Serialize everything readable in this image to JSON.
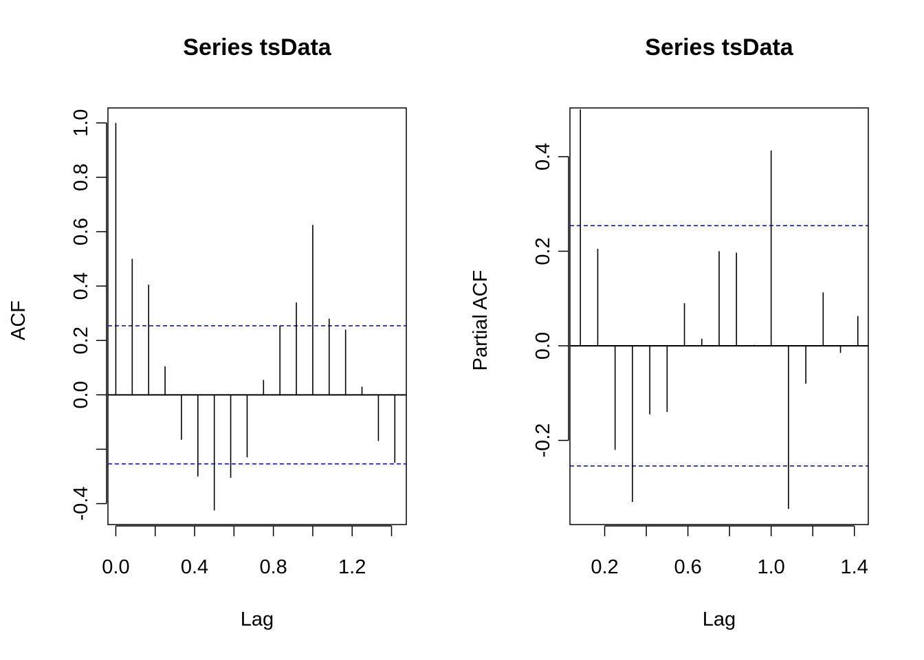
{
  "chart_data": [
    {
      "type": "bar",
      "title": "Series  tsData",
      "xlabel": "Lag",
      "ylabel": "ACF",
      "xlim": [
        -0.04,
        1.475
      ],
      "ylim": [
        -0.477,
        1.055
      ],
      "x_ticks": [
        "0.0",
        "0.4",
        "0.8",
        "1.2"
      ],
      "x_tick_values": [
        0.0,
        0.2,
        0.4,
        0.6,
        0.8,
        1.0,
        1.2,
        1.4
      ],
      "y_ticks": [
        "-0.4",
        "0.0",
        "0.2",
        "0.4",
        "0.6",
        "0.8",
        "1.0"
      ],
      "y_tick_values": [
        -0.4,
        -0.2,
        0.0,
        0.2,
        0.4,
        0.6,
        0.8,
        1.0
      ],
      "lags": [
        0.0,
        0.0833,
        0.1667,
        0.25,
        0.3333,
        0.4167,
        0.5,
        0.5833,
        0.6667,
        0.75,
        0.8333,
        0.9167,
        1.0,
        1.0833,
        1.1667,
        1.25,
        1.3333,
        1.4167
      ],
      "values": [
        1.0,
        0.5,
        0.405,
        0.105,
        -0.165,
        -0.3,
        -0.425,
        -0.305,
        -0.23,
        0.055,
        0.255,
        0.34,
        0.625,
        0.28,
        0.24,
        0.03,
        -0.17,
        -0.25
      ],
      "ci": 0.254,
      "ci_color": "#0000CD"
    },
    {
      "type": "bar",
      "title": "Series  tsData",
      "xlabel": "Lag",
      "ylabel": "Partial ACF",
      "xlim": [
        0.033,
        1.467
      ],
      "ylim": [
        -0.378,
        0.503
      ],
      "x_ticks": [
        "0.2",
        "0.6",
        "1.0",
        "1.4"
      ],
      "x_tick_values": [
        0.2,
        0.4,
        0.6,
        0.8,
        1.0,
        1.2,
        1.4
      ],
      "y_ticks": [
        "-0.2",
        "0.0",
        "0.2",
        "0.4"
      ],
      "y_tick_values": [
        -0.2,
        0.0,
        0.2,
        0.4
      ],
      "lags": [
        0.0833,
        0.1667,
        0.25,
        0.3333,
        0.4167,
        0.5,
        0.5833,
        0.6667,
        0.75,
        0.8333,
        0.9167,
        1.0,
        1.0833,
        1.1667,
        1.25,
        1.3333,
        1.4167
      ],
      "values": [
        0.5,
        0.205,
        -0.22,
        -0.33,
        -0.145,
        -0.14,
        0.09,
        0.015,
        0.2,
        0.197,
        0.002,
        0.413,
        -0.345,
        -0.08,
        0.113,
        -0.015,
        0.063
      ],
      "ci": 0.254,
      "ci_color": "#0000CD"
    }
  ]
}
